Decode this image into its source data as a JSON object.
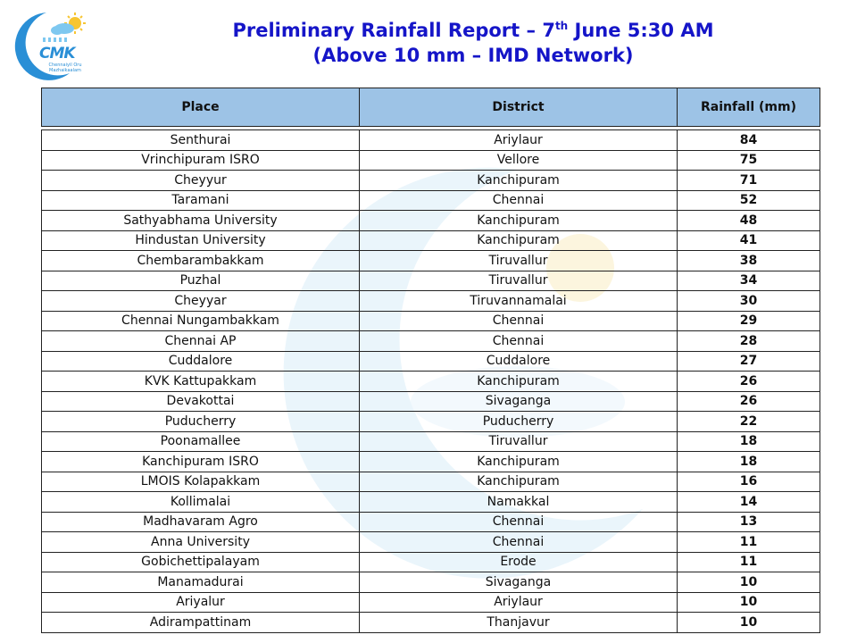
{
  "logo": {
    "brand": "CMK",
    "tagline": "Chennaiyil Oru Mazhaikaalam",
    "icon": "sun-cloud-moon-icon"
  },
  "title": {
    "line1_prefix": "Preliminary Rainfall Report – 7",
    "line1_sup": "th",
    "line1_suffix": " June 5:30 AM",
    "line2": "(Above 10 mm – IMD Network)"
  },
  "table": {
    "headers": [
      "Place",
      "District",
      "Rainfall (mm)"
    ],
    "rows": [
      [
        "Senthurai",
        "Ariylaur",
        "84"
      ],
      [
        "Vrinchipuram ISRO",
        "Vellore",
        "75"
      ],
      [
        "Cheyyur",
        "Kanchipuram",
        "71"
      ],
      [
        "Taramani",
        "Chennai",
        "52"
      ],
      [
        "Sathyabhama University",
        "Kanchipuram",
        "48"
      ],
      [
        "Hindustan University",
        "Kanchipuram",
        "41"
      ],
      [
        "Chembarambakkam",
        "Tiruvallur",
        "38"
      ],
      [
        "Puzhal",
        "Tiruvallur",
        "34"
      ],
      [
        "Cheyyar",
        "Tiruvannamalai",
        "30"
      ],
      [
        "Chennai Nungambakkam",
        "Chennai",
        "29"
      ],
      [
        "Chennai AP",
        "Chennai",
        "28"
      ],
      [
        "Cuddalore",
        "Cuddalore",
        "27"
      ],
      [
        "KVK Kattupakkam",
        "Kanchipuram",
        "26"
      ],
      [
        "Devakottai",
        "Sivaganga",
        "26"
      ],
      [
        "Puducherry",
        "Puducherry",
        "22"
      ],
      [
        "Poonamallee",
        "Tiruvallur",
        "18"
      ],
      [
        "Kanchipuram ISRO",
        "Kanchipuram",
        "18"
      ],
      [
        "LMOIS Kolapakkam",
        "Kanchipuram",
        "16"
      ],
      [
        "Kollimalai",
        "Namakkal",
        "14"
      ],
      [
        "Madhavaram Agro",
        "Chennai",
        "13"
      ],
      [
        "Anna University",
        "Chennai",
        "11"
      ],
      [
        "Gobichettipalayam",
        "Erode",
        "11"
      ],
      [
        "Manamadurai",
        "Sivaganga",
        "10"
      ],
      [
        "Ariyalur",
        "Ariylaur",
        "10"
      ],
      [
        "Adirampattinam",
        "Thanjavur",
        "10"
      ]
    ]
  },
  "colors": {
    "title": "#1515c8",
    "header_bg": "#9dc3e6",
    "logo_blue": "#2a8fd6",
    "logo_red": "#e53935"
  }
}
